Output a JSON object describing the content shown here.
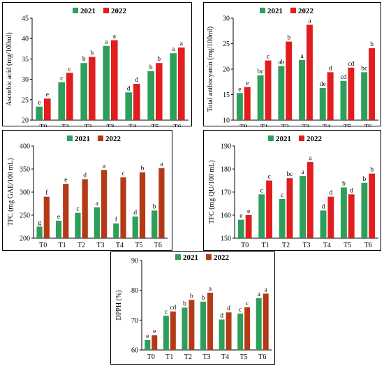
{
  "chart_data": [
    {
      "type": "bar",
      "categories": [
        "T0",
        "T1",
        "T2",
        "T3",
        "T4",
        "T5",
        "T6"
      ],
      "ylabel": "Ascorbic acid (mg/100ml)",
      "ylim": [
        20,
        45
      ],
      "yticks": [
        20,
        25,
        30,
        35,
        40,
        45
      ],
      "legend_placement": "top-center",
      "colors": [
        "#2e9e5b",
        "#e11d1d"
      ],
      "series": [
        {
          "name": "2021",
          "values": [
            23.3,
            29.3,
            34.0,
            38.2,
            26.8,
            32.0,
            36.4
          ],
          "letters": [
            "e",
            "c",
            "b",
            "a",
            "d",
            "b",
            "a"
          ]
        },
        {
          "name": "2022",
          "values": [
            25.3,
            31.6,
            35.5,
            39.6,
            28.9,
            34.0,
            37.8
          ],
          "letters": [
            "e",
            "c",
            "b",
            "a",
            "d",
            "b",
            "a"
          ]
        }
      ]
    },
    {
      "type": "bar",
      "categories": [
        "T0",
        "T1",
        "T2",
        "T3",
        "T4",
        "T5",
        "T6"
      ],
      "ylabel": "Total anthocyanin (mg/100ml)",
      "ylim": [
        10,
        30
      ],
      "yticks": [
        10,
        15,
        20,
        25,
        30
      ],
      "legend_placement": "top-center",
      "colors": [
        "#2e9e5b",
        "#e11d1d"
      ],
      "series": [
        {
          "name": "2021",
          "values": [
            15.3,
            18.8,
            20.6,
            21.8,
            16.3,
            17.7,
            19.4
          ],
          "letters": [
            "e",
            "bc",
            "ab",
            "a",
            "de",
            "cd",
            "bc"
          ]
        },
        {
          "name": "2022",
          "values": [
            16.5,
            21.7,
            25.4,
            28.7,
            19.4,
            20.3,
            24.1
          ],
          "letters": [
            "e",
            "c",
            "b",
            "a",
            "d",
            "cd",
            "b"
          ]
        }
      ]
    },
    {
      "type": "bar",
      "categories": [
        "T0",
        "T1",
        "T2",
        "T3",
        "T4",
        "T5",
        "T6"
      ],
      "ylabel": "TPC (mg GAE/100 mL)",
      "ylim": [
        200,
        400
      ],
      "yticks": [
        200,
        250,
        300,
        350,
        400
      ],
      "legend_placement": "top-center",
      "colors": [
        "#2e9e5b",
        "#b43a17"
      ],
      "series": [
        {
          "name": "2021",
          "values": [
            225,
            238,
            255,
            267,
            232,
            247,
            260
          ],
          "letters": [
            "g",
            "e",
            "c",
            "a",
            "f",
            "d",
            "b"
          ]
        },
        {
          "name": "2022",
          "values": [
            290,
            318,
            328,
            348,
            332,
            343,
            352
          ],
          "letters": [
            "f",
            "e",
            "d",
            "a",
            "c",
            "b",
            "a"
          ]
        }
      ]
    },
    {
      "type": "bar",
      "categories": [
        "T0",
        "T1",
        "T2",
        "T3",
        "T4",
        "T5",
        "T6"
      ],
      "ylabel": "TFC (mg QU/100 mL)",
      "ylim": [
        150,
        190
      ],
      "yticks": [
        150,
        160,
        170,
        180,
        190
      ],
      "legend_placement": "top-center",
      "colors": [
        "#2e9e5b",
        "#e11d1d"
      ],
      "series": [
        {
          "name": "2021",
          "values": [
            158,
            169,
            167,
            177,
            162,
            172,
            174
          ],
          "letters": [
            "e",
            "c",
            "c",
            "a",
            "d",
            "b",
            "b"
          ]
        },
        {
          "name": "2022",
          "values": [
            160,
            175,
            176,
            183,
            168,
            169,
            178
          ],
          "letters": [
            "e",
            "c",
            "bc",
            "a",
            "d",
            "d",
            "b"
          ]
        }
      ]
    },
    {
      "type": "bar",
      "categories": [
        "T0",
        "T1",
        "T2",
        "T3",
        "T4",
        "T5",
        "T6"
      ],
      "ylabel": "DPPH (%)",
      "ylim": [
        60,
        90
      ],
      "yticks": [
        60,
        70,
        80,
        90
      ],
      "legend_placement": "top-center",
      "colors": [
        "#2e9e5b",
        "#b43a17"
      ],
      "series": [
        {
          "name": "2021",
          "values": [
            63.3,
            71.5,
            74.2,
            76.2,
            70.2,
            72.2,
            77.4
          ],
          "letters": [
            "e",
            "c",
            "b",
            "b",
            "d",
            "c",
            "a"
          ]
        },
        {
          "name": "2022",
          "values": [
            64.9,
            72.9,
            76.8,
            79.2,
            72.6,
            74.3,
            78.9
          ],
          "letters": [
            "e",
            "cd",
            "b",
            "a",
            "d",
            "c",
            "a"
          ]
        }
      ]
    }
  ]
}
